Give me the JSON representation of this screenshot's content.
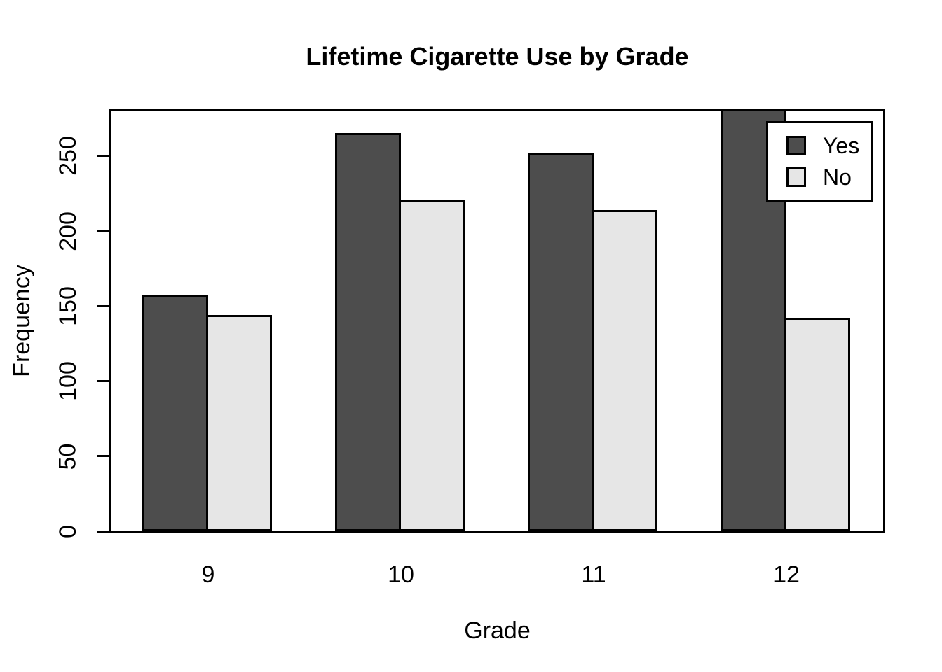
{
  "title": "Lifetime Cigarette Use by Grade",
  "chart_data": {
    "type": "bar",
    "title": "Lifetime Cigarette Use by Grade",
    "xlabel": "Grade",
    "ylabel": "Frequency",
    "categories": [
      "9",
      "10",
      "11",
      "12"
    ],
    "series": [
      {
        "name": "Yes",
        "color": "#4D4D4D",
        "values": [
          157,
          265,
          252,
          285
        ]
      },
      {
        "name": "No",
        "color": "#E6E6E6",
        "values": [
          144,
          221,
          214,
          142
        ]
      }
    ],
    "ylim": [
      0,
      280
    ],
    "yticks": [
      0,
      50,
      100,
      150,
      200,
      250
    ],
    "grid": false,
    "legend_position": "top-right",
    "plot_background": "#ffffff",
    "bar_border_color": "#000000",
    "clip_note": "Grade 12 Yes bar exceeds the y-axis range and is clipped at the top of the plot box"
  }
}
